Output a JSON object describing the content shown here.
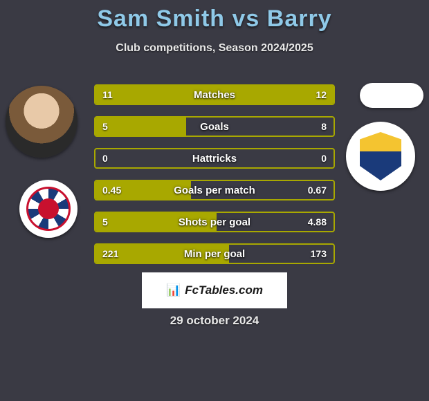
{
  "title": "Sam Smith vs Barry",
  "title_color": "#8fc9e8",
  "subtitle": "Club competitions, Season 2024/2025",
  "background_color": "#3a3a44",
  "bar_color": "#a8a800",
  "text_color": "#ffffff",
  "watermark": "FcTables.com",
  "date": "29 october 2024",
  "bars": [
    {
      "label": "Matches",
      "left_val": "11",
      "right_val": "12",
      "left_pct": 48,
      "right_pct": 52
    },
    {
      "label": "Goals",
      "left_val": "5",
      "right_val": "8",
      "left_pct": 38,
      "right_pct": 0
    },
    {
      "label": "Hattricks",
      "left_val": "0",
      "right_val": "0",
      "left_pct": 0,
      "right_pct": 0
    },
    {
      "label": "Goals per match",
      "left_val": "0.45",
      "right_val": "0.67",
      "left_pct": 40,
      "right_pct": 0
    },
    {
      "label": "Shots per goal",
      "left_val": "5",
      "right_val": "4.88",
      "left_pct": 51,
      "right_pct": 0
    },
    {
      "label": "Min per goal",
      "left_val": "221",
      "right_val": "173",
      "left_pct": 56,
      "right_pct": 0
    }
  ]
}
